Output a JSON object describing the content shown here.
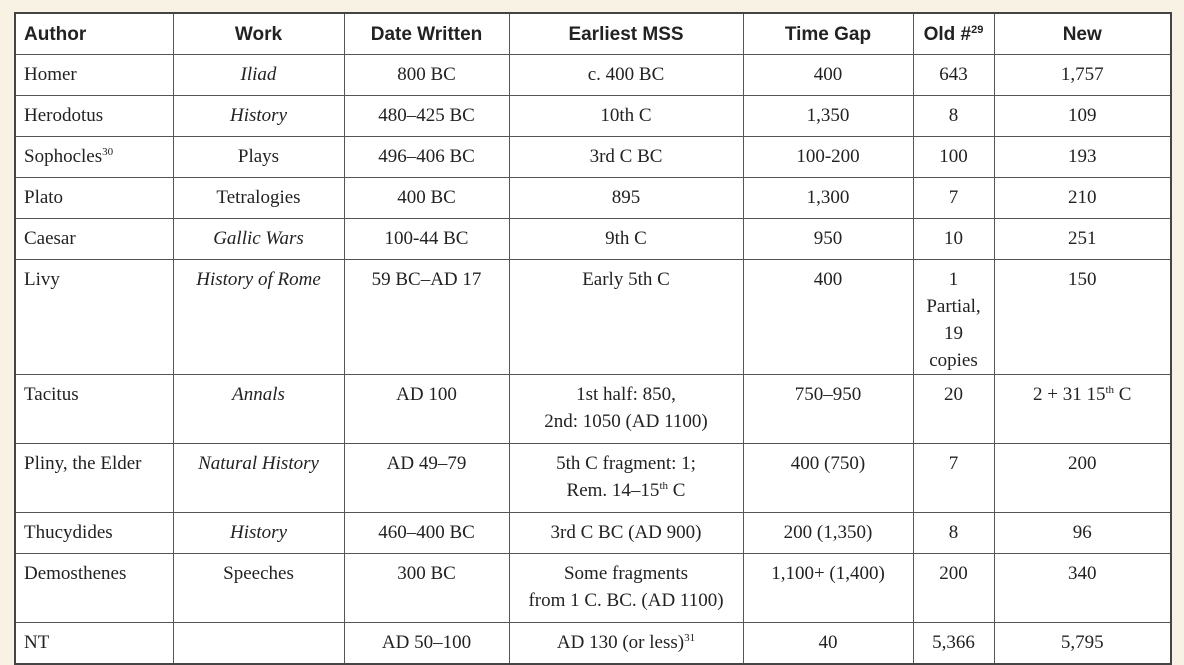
{
  "table": {
    "header": [
      "Author",
      "Work",
      "Date Written",
      "Earliest MSS",
      "Time Gap",
      {
        "text": "Old #",
        "sup": "29"
      },
      "New"
    ],
    "rows": [
      [
        "Homer",
        {
          "text": "Iliad",
          "italic": true
        },
        "800 BC",
        "c. 400 BC",
        "400",
        "643",
        "1,757"
      ],
      [
        "Herodotus",
        {
          "text": "History",
          "italic": true
        },
        "480–425 BC",
        "10th C",
        "1,350",
        "8",
        "109"
      ],
      [
        {
          "text": "Sophocles",
          "sup": "30"
        },
        "Plays",
        "496–406 BC",
        "3rd C BC",
        "100-200",
        "100",
        "193"
      ],
      [
        "Plato",
        "Tetralogies",
        "400 BC",
        "895",
        "1,300",
        "7",
        "210"
      ],
      [
        "Caesar",
        {
          "text": "Gallic Wars",
          "italic": true
        },
        "100-44 BC",
        "9th C",
        "950",
        "10",
        "251"
      ],
      [
        "Livy",
        {
          "text": "History of Rome",
          "italic": true
        },
        "59 BC–AD 17",
        "Early 5th C",
        "400",
        {
          "lines": [
            "1 Partial,",
            "19 copies"
          ]
        },
        "150"
      ],
      [
        "Tacitus",
        {
          "text": "Annals",
          "italic": true
        },
        "AD 100",
        {
          "lines": [
            "1st half: 850,",
            "2nd: 1050 (AD 1100)"
          ]
        },
        "750–950",
        "20",
        {
          "text": "2 + 31 15",
          "sup": "th",
          "after": " C"
        }
      ],
      [
        "Pliny, the Elder",
        {
          "text": "Natural History",
          "italic": true
        },
        "AD 49–79",
        {
          "lines": [
            "5th C fragment: 1;",
            {
              "text": "Rem. 14–15",
              "sup": "th",
              "after": " C"
            }
          ]
        },
        "400 (750)",
        "7",
        "200"
      ],
      [
        "Thucydides",
        {
          "text": "History",
          "italic": true
        },
        "460–400 BC",
        "3rd C BC (AD 900)",
        "200 (1,350)",
        "8",
        "96"
      ],
      [
        "Demosthenes",
        "Speeches",
        "300 BC",
        {
          "lines": [
            "Some fragments",
            "from 1 C. BC. (AD 1100)"
          ]
        },
        "1,100+ (1,400)",
        "200",
        "340"
      ],
      [
        "NT",
        null,
        "AD 50–100",
        {
          "text": "AD 130 (or less)",
          "sup": "31"
        },
        "40",
        "5,366",
        "5,795"
      ]
    ]
  }
}
